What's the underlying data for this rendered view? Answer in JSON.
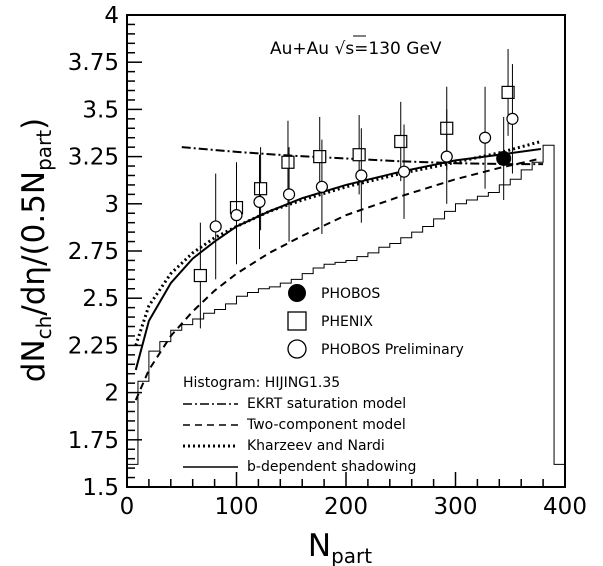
{
  "chart_data": {
    "type": "scatter",
    "title": "",
    "annotation": {
      "prefix": "Au+Au",
      "sqrt": "√",
      "s": "s",
      "suffix": "=130 GeV"
    },
    "xlabel": {
      "main": "N",
      "sub": "part"
    },
    "ylabel": {
      "parts": [
        {
          "t": "dN",
          "sub": false
        },
        {
          "t": "ch",
          "sub": true
        },
        {
          "t": "/dη/(0.5N",
          "sub": false
        },
        {
          "t": "part",
          "sub": true
        },
        {
          "t": ")",
          "sub": false
        }
      ]
    },
    "xlim": [
      0,
      400
    ],
    "ylim": [
      1.5,
      4
    ],
    "x_ticks": [
      "0",
      "100",
      "200",
      "300",
      "400"
    ],
    "y_ticks": [
      "1.5",
      "1.75",
      "2",
      "2.25",
      "2.5",
      "2.75",
      "3",
      "3.25",
      "3.5",
      "3.75",
      "4"
    ],
    "grid": false,
    "series": [
      {
        "name": "PHOBOS",
        "kind": "points",
        "marker": "filled-circle",
        "points": [
          {
            "x": 344,
            "y": 3.24,
            "err": 0.22
          }
        ]
      },
      {
        "name": "PHENIX",
        "kind": "points",
        "marker": "open-square",
        "points": [
          {
            "x": 67,
            "y": 2.62,
            "err": 0.28
          },
          {
            "x": 100,
            "y": 2.98,
            "err": 0.24
          },
          {
            "x": 122,
            "y": 3.08,
            "err": 0.22
          },
          {
            "x": 147,
            "y": 3.22,
            "err": 0.22
          },
          {
            "x": 176,
            "y": 3.25,
            "err": 0.21
          },
          {
            "x": 212,
            "y": 3.26,
            "err": 0.21
          },
          {
            "x": 250,
            "y": 3.33,
            "err": 0.21
          },
          {
            "x": 292,
            "y": 3.4,
            "err": 0.22
          },
          {
            "x": 348,
            "y": 3.59,
            "err": 0.23
          }
        ]
      },
      {
        "name": "PHOBOS Preliminary",
        "kind": "points",
        "marker": "open-circle",
        "points": [
          {
            "x": 81,
            "y": 2.88,
            "err": 0.28
          },
          {
            "x": 100,
            "y": 2.94,
            "err": 0.26
          },
          {
            "x": 121,
            "y": 3.01,
            "err": 0.25
          },
          {
            "x": 148,
            "y": 3.05,
            "err": 0.25
          },
          {
            "x": 178,
            "y": 3.09,
            "err": 0.25
          },
          {
            "x": 214,
            "y": 3.15,
            "err": 0.25
          },
          {
            "x": 253,
            "y": 3.17,
            "err": 0.25
          },
          {
            "x": 292,
            "y": 3.25,
            "err": 0.25
          },
          {
            "x": 327,
            "y": 3.35,
            "err": 0.27
          },
          {
            "x": 352,
            "y": 3.45,
            "err": 0.29
          }
        ]
      },
      {
        "name": "EKRT saturation model",
        "kind": "line",
        "style": "dashdot",
        "x": [
          50,
          100,
          150,
          200,
          250,
          300,
          350,
          380
        ],
        "y": [
          3.3,
          3.275,
          3.255,
          3.24,
          3.225,
          3.215,
          3.21,
          3.21
        ]
      },
      {
        "name": "Two-component model",
        "kind": "line",
        "style": "dashed",
        "x": [
          8,
          20,
          40,
          60,
          80,
          100,
          130,
          160,
          200,
          250,
          300,
          340,
          378
        ],
        "y": [
          1.96,
          2.12,
          2.3,
          2.43,
          2.54,
          2.63,
          2.74,
          2.83,
          2.94,
          3.04,
          3.13,
          3.19,
          3.24
        ]
      },
      {
        "name": "Kharzeev and Nardi",
        "kind": "line",
        "style": "dotted",
        "x": [
          8,
          20,
          40,
          60,
          80,
          100,
          130,
          160,
          200,
          250,
          300,
          340,
          378
        ],
        "y": [
          2.25,
          2.46,
          2.63,
          2.74,
          2.82,
          2.88,
          2.96,
          3.02,
          3.09,
          3.16,
          3.22,
          3.27,
          3.33
        ]
      },
      {
        "name": "b-dependent shadowing",
        "kind": "line",
        "style": "solid",
        "x": [
          8,
          20,
          40,
          60,
          80,
          100,
          130,
          160,
          200,
          250,
          300,
          340,
          378
        ],
        "y": [
          2.12,
          2.38,
          2.58,
          2.71,
          2.8,
          2.88,
          2.96,
          3.03,
          3.1,
          3.17,
          3.23,
          3.26,
          3.29
        ]
      },
      {
        "name": "HIJING1.35",
        "kind": "histogram",
        "edges": [
          0,
          10,
          20,
          30,
          40,
          50,
          60,
          70,
          80,
          90,
          100,
          110,
          120,
          130,
          140,
          150,
          160,
          170,
          180,
          190,
          200,
          210,
          220,
          230,
          240,
          250,
          260,
          270,
          280,
          290,
          300,
          310,
          320,
          330,
          340,
          350,
          360,
          370,
          380,
          390
        ],
        "values": [
          1.62,
          2.06,
          2.22,
          2.27,
          2.33,
          2.36,
          2.39,
          2.42,
          2.44,
          2.47,
          2.51,
          2.53,
          2.55,
          2.56,
          2.58,
          2.6,
          2.63,
          2.66,
          2.68,
          2.69,
          2.7,
          2.72,
          2.74,
          2.77,
          2.79,
          2.82,
          2.85,
          2.88,
          2.92,
          2.96,
          3.0,
          3.02,
          3.04,
          3.06,
          3.1,
          3.13,
          3.18,
          3.22,
          3.31,
          1.62
        ]
      }
    ],
    "legend_top": {
      "placement": "lower-right",
      "entries": [
        {
          "marker": "filled-circle",
          "label": "PHOBOS"
        },
        {
          "marker": "open-square",
          "label": "PHENIX"
        },
        {
          "marker": "open-circle",
          "label": "PHOBOS Preliminary"
        }
      ]
    },
    "legend_bottom": {
      "placement": "lower-middle",
      "header": "Histogram: HIJING1.35",
      "entries": [
        {
          "style": "dashdot",
          "label": "EKRT saturation model"
        },
        {
          "style": "dashed",
          "label": "Two-component model"
        },
        {
          "style": "dotted",
          "label": "Kharzeev and Nardi"
        },
        {
          "style": "solid",
          "label": "b-dependent shadowing"
        }
      ]
    }
  }
}
